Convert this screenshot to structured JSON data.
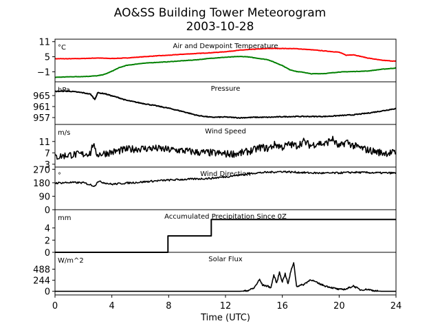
{
  "chart_data": {
    "type": "line",
    "title": "AO&SS Building Tower Meteorogram",
    "subtitle": "2003-10-28",
    "xlabel": "Time (UTC)",
    "xlim": [
      0,
      24
    ],
    "xticks": [
      0,
      4,
      8,
      12,
      16,
      20,
      24
    ],
    "panels": [
      {
        "key": "temp",
        "title": "Air and Dewpoint Temperature",
        "unit": "°C",
        "ylim": [
          -5,
          12
        ],
        "yticks": [
          11,
          5,
          -1
        ],
        "series": [
          {
            "color": "#ff0000",
            "x": [
              0,
              1,
              2,
              3,
              4,
              5,
              6,
              7,
              8,
              9,
              10,
              11,
              12,
              13,
              14,
              15,
              16,
              17,
              18,
              19,
              20,
              20.5,
              21,
              22,
              23,
              24
            ],
            "y": [
              4.2,
              4.2,
              4.3,
              4.5,
              4.3,
              4.5,
              4.9,
              5.3,
              5.6,
              6.0,
              6.3,
              6.6,
              7.0,
              7.6,
              8.0,
              8.3,
              8.3,
              8.2,
              7.8,
              7.3,
              6.8,
              5.6,
              5.8,
              4.5,
              3.6,
              3.2
            ]
          },
          {
            "color": "#008000",
            "x": [
              0,
              1,
              2,
              3,
              3.5,
              4,
              4.5,
              5,
              6,
              7,
              8,
              9,
              10,
              11,
              12,
              13,
              13.5,
              14,
              15,
              16,
              16.5,
              17,
              17.5,
              18,
              19,
              20,
              21,
              22,
              23,
              24
            ],
            "y": [
              -3.2,
              -3.0,
              -2.9,
              -2.6,
              -2.0,
              -0.8,
              0.6,
              1.5,
              2.3,
              2.7,
              3.0,
              3.4,
              3.8,
              4.4,
              4.8,
              5.1,
              5.0,
              4.6,
              3.8,
              1.5,
              -0.1,
              -0.9,
              -1.2,
              -1.8,
              -1.7,
              -1.1,
              -0.9,
              -0.7,
              0.0,
              0.5
            ]
          }
        ]
      },
      {
        "key": "pres",
        "title": "Pressure",
        "unit": "hPa",
        "ylim": [
          954.5,
          970
        ],
        "yticks": [
          965,
          961,
          957
        ],
        "series": [
          {
            "color": "#000000",
            "x": [
              0,
              0.5,
              1,
              1.5,
              2,
              2.5,
              2.8,
              3,
              3.5,
              4,
              4.5,
              5,
              6,
              7,
              8,
              9,
              10,
              11,
              12,
              13,
              14,
              15,
              16,
              17,
              18,
              19,
              20,
              21,
              22,
              23,
              24
            ],
            "y": [
              966.5,
              966.6,
              966.6,
              966.3,
              966.0,
              965.5,
              963.6,
              966.0,
              965.7,
              964.9,
              964.2,
              963.3,
              962.3,
              961.4,
              960.4,
              959.2,
              957.8,
              957.1,
              957.2,
              956.9,
              957.1,
              957.1,
              957.3,
              957.4,
              957.4,
              957.4,
              957.7,
              958.0,
              958.6,
              959.4,
              960.3
            ]
          }
        ]
      },
      {
        "key": "wspd",
        "title": "Wind Speed",
        "unit": "m/s",
        "ylim": [
          2,
          17
        ],
        "yticks": [
          11,
          7,
          3
        ],
        "series": [
          {
            "color": "#000000",
            "x": [
              0,
              1,
              2,
              2.5,
              2.7,
              2.8,
              3,
              4,
              5,
              6,
              7,
              8,
              9,
              10,
              11,
              12,
              13,
              14,
              14.5,
              15,
              15.5,
              16,
              16.5,
              17,
              17.5,
              18,
              18.5,
              19,
              19.5,
              20,
              20.5,
              21,
              22,
              23,
              24
            ],
            "y": [
              5.5,
              6.3,
              6.5,
              7.0,
              10.6,
              7.5,
              6.5,
              7.2,
              8.2,
              8.5,
              8.6,
              8.1,
              7.8,
              7.2,
              7.0,
              6.6,
              6.8,
              8.0,
              9.0,
              8.5,
              10.0,
              9.0,
              10.0,
              9.5,
              11.0,
              9.5,
              10.5,
              10.0,
              12.0,
              9.0,
              11.0,
              9.5,
              8.0,
              7.0,
              7.0
            ]
          }
        ]
      },
      {
        "key": "wdir",
        "title": "Wind Direction",
        "unit": "°",
        "ylim": [
          0,
          285
        ],
        "yticks": [
          270,
          180,
          90,
          0
        ],
        "series": [
          {
            "color": "#000000",
            "x": [
              0,
              1,
              2,
              2.8,
              3,
              4,
              5,
              6,
              7,
              8,
              9,
              10,
              11,
              12,
              13,
              14,
              15,
              16,
              17,
              18,
              19,
              20,
              21,
              22,
              23,
              24
            ],
            "y": [
              178,
              182,
              180,
              158,
              190,
              170,
              178,
              184,
              192,
              198,
              202,
              206,
              210,
              220,
              232,
              245,
              250,
              255,
              250,
              246,
              244,
              246,
              250,
              248,
              246,
              245
            ]
          }
        ]
      },
      {
        "key": "prcp",
        "title": "Accumulated Precipitation Since 0Z",
        "unit": "mm",
        "ylim": [
          0,
          7
        ],
        "yticks": [
          4,
          2,
          0
        ],
        "series": [
          {
            "color": "#000000",
            "x": [
              0,
              7.95,
              7.95,
              11.0,
              11.0,
              24
            ],
            "y": [
              0,
              0,
              2.7,
              2.7,
              5.4,
              5.4
            ]
          }
        ]
      },
      {
        "key": "sol",
        "title": "Solar Flux",
        "unit": "W/m^2",
        "ylim": [
          -80,
          860
        ],
        "yticks": [
          488,
          244,
          0
        ],
        "series": [
          {
            "color": "#000000",
            "x": [
              0,
              13,
              13.5,
              14,
              14.4,
              14.6,
              15,
              15.2,
              15.4,
              15.6,
              15.8,
              16,
              16.2,
              16.4,
              16.6,
              16.8,
              17,
              17.5,
              18,
              18.5,
              19,
              19.5,
              20,
              20.5,
              21,
              21.5,
              22,
              22.5,
              23,
              24
            ],
            "y": [
              0,
              0,
              10,
              70,
              260,
              140,
              110,
              80,
              360,
              180,
              420,
              210,
              390,
              160,
              440,
              640,
              110,
              150,
              260,
              180,
              120,
              80,
              40,
              50,
              120,
              30,
              45,
              10,
              0,
              0
            ]
          }
        ]
      }
    ]
  }
}
